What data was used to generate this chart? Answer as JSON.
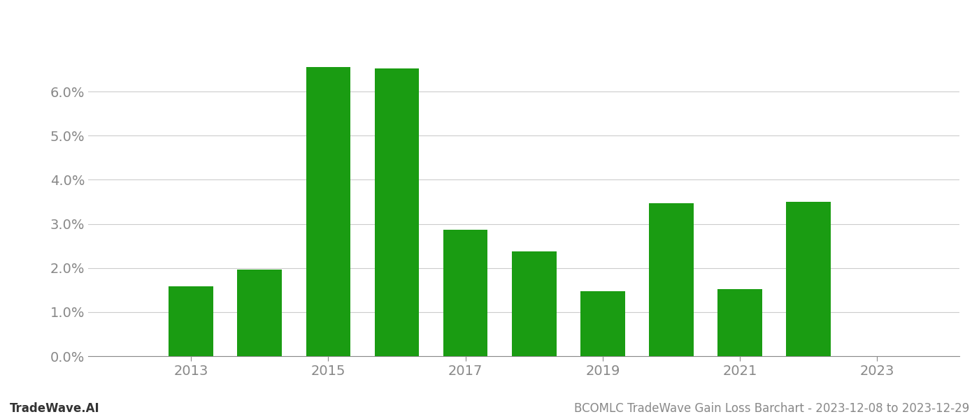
{
  "years": [
    2013,
    2014,
    2015,
    2016,
    2017,
    2018,
    2019,
    2020,
    2021,
    2022,
    2023
  ],
  "values": [
    0.0158,
    0.0197,
    0.0655,
    0.0652,
    0.0287,
    0.0238,
    0.0147,
    0.0347,
    0.0152,
    0.035,
    0.0
  ],
  "bar_color": "#1a9c12",
  "background_color": "#ffffff",
  "grid_color": "#cccccc",
  "axis_label_color": "#888888",
  "ylabel_ticks": [
    0.0,
    0.01,
    0.02,
    0.03,
    0.04,
    0.05,
    0.06
  ],
  "ylabel_labels": [
    "0.0%",
    "1.0%",
    "2.0%",
    "3.0%",
    "4.0%",
    "5.0%",
    "6.0%"
  ],
  "xlim_min": 2011.5,
  "xlim_max": 2024.2,
  "ylim_min": 0.0,
  "ylim_max": 0.076,
  "footer_left": "TradeWave.AI",
  "footer_right": "BCOMLC TradeWave Gain Loss Barchart - 2023-12-08 to 2023-12-29",
  "xtick_positions": [
    2013,
    2015,
    2017,
    2019,
    2021,
    2023
  ],
  "bar_width": 0.65,
  "footer_fontsize": 12,
  "tick_fontsize": 14
}
